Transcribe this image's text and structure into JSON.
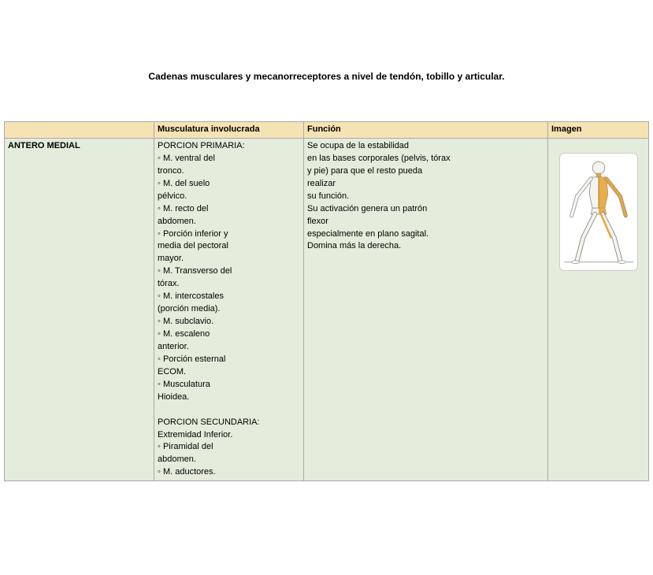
{
  "title": "Cadenas musculares y mecanorreceptores a nivel de tendón, tobillo y articular.",
  "table": {
    "headers": {
      "blank": "",
      "musculatura": "Musculatura involucrada",
      "funcion": "Función",
      "imagen": "Imagen"
    },
    "row1": {
      "label": "ANTERO MEDIAL",
      "musculatura": "PORCION PRIMARIA:\n◦ M. ventral del\ntronco.\n◦ M. del suelo\npélvico.\n◦ M.  recto del\nabdomen.\n◦ Porción inferior y\nmedia del pectoral\nmayor.\n◦ M. Transverso del\ntórax.\n◦ M. intercostales\n(porción media).\n◦ M. subclavio.\n◦ M. escaleno\nanterior.\n◦ Porción esternal\nECOM.\n◦ Musculatura\nHioidea.\n \nPORCION SECUNDARIA:\nExtremidad Inferior.\n◦ Piramidal del\nabdomen.\n◦ M. aductores.",
      "funcion": "Se ocupa de la estabilidad\nen las bases corporales (pelvis, tórax\ny pie) para que el resto pueda\nrealizar\nsu función.\nSu activación genera un patrón\nflexor\nespecialmente en plano sagital.\nDomina más la derecha."
    }
  },
  "figure": {
    "bg": "#ffffff",
    "border": "#cccccc",
    "body_outline": "#888888",
    "body_fill": "#f5f5f0",
    "highlight": "#e8a53a",
    "highlight_dark": "#b87520",
    "ground": "#999999"
  }
}
